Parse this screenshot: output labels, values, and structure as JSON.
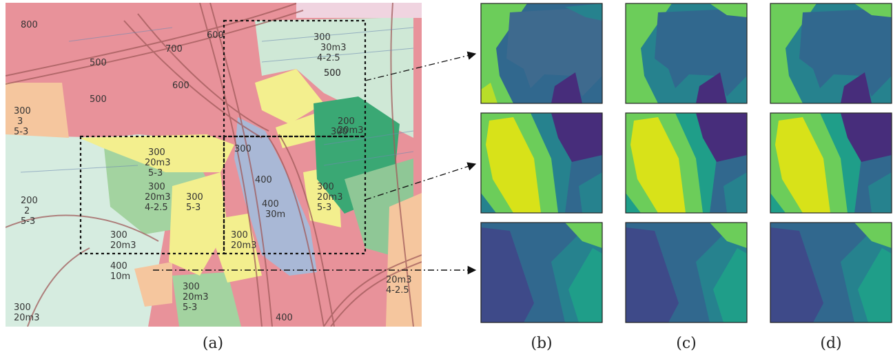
{
  "captions": {
    "a": "(a)",
    "b": "(b)",
    "c": "(c)",
    "d": "(d)"
  },
  "map": {
    "labels": [
      {
        "text": "800"
      },
      {
        "text": "700"
      },
      {
        "text": "600"
      },
      {
        "text": "500"
      },
      {
        "text": "500"
      },
      {
        "text": "300"
      },
      {
        "text": "3"
      },
      {
        "text": "5-3"
      },
      {
        "text": "300"
      },
      {
        "text": "30m3"
      },
      {
        "text": "4-2.5"
      },
      {
        "text": "500"
      },
      {
        "text": "300"
      },
      {
        "text": "20m3"
      },
      {
        "text": "5-3"
      },
      {
        "text": "300"
      },
      {
        "text": "20m3"
      },
      {
        "text": "4-2.5"
      },
      {
        "text": "200"
      },
      {
        "text": "2"
      },
      {
        "text": "5-3"
      },
      {
        "text": "400"
      },
      {
        "text": "400"
      },
      {
        "text": "30m"
      },
      {
        "text": "300"
      },
      {
        "text": "20m3"
      },
      {
        "text": "400"
      },
      {
        "text": "10m"
      },
      {
        "text": "300"
      },
      {
        "text": "5-3"
      },
      {
        "text": "300"
      },
      {
        "text": "20m3"
      },
      {
        "text": "300"
      },
      {
        "text": "20m3"
      },
      {
        "text": "5-3"
      },
      {
        "text": "300"
      },
      {
        "text": "20m3"
      },
      {
        "text": "400"
      },
      {
        "text": "20m3"
      },
      {
        "text": "4-2.5"
      },
      {
        "text": "300"
      },
      {
        "text": "20m3"
      },
      {
        "text": "5-3"
      },
      {
        "text": "500"
      },
      {
        "text": "600"
      },
      {
        "text": "300"
      },
      {
        "text": "300"
      },
      {
        "text": "200"
      },
      {
        "text": "20m3"
      }
    ]
  },
  "colors": {
    "commercial": "#e8929a",
    "residential_light": "#cfe8d6",
    "residential_green": "#9fd29c",
    "residential_dark": "#3aa874",
    "yellow_zone": "#f3ef8e",
    "blue_zone": "#a9b8d6",
    "orange_zone": "#f5c69e",
    "seg_purple": "#472d7b",
    "seg_indigo": "#3e4a89",
    "seg_blue": "#31688e",
    "seg_teal": "#26828e",
    "seg_cyan": "#1f9e89",
    "seg_green": "#6ccd5a",
    "seg_lime": "#b8de29",
    "seg_yellow": "#d8e219"
  }
}
